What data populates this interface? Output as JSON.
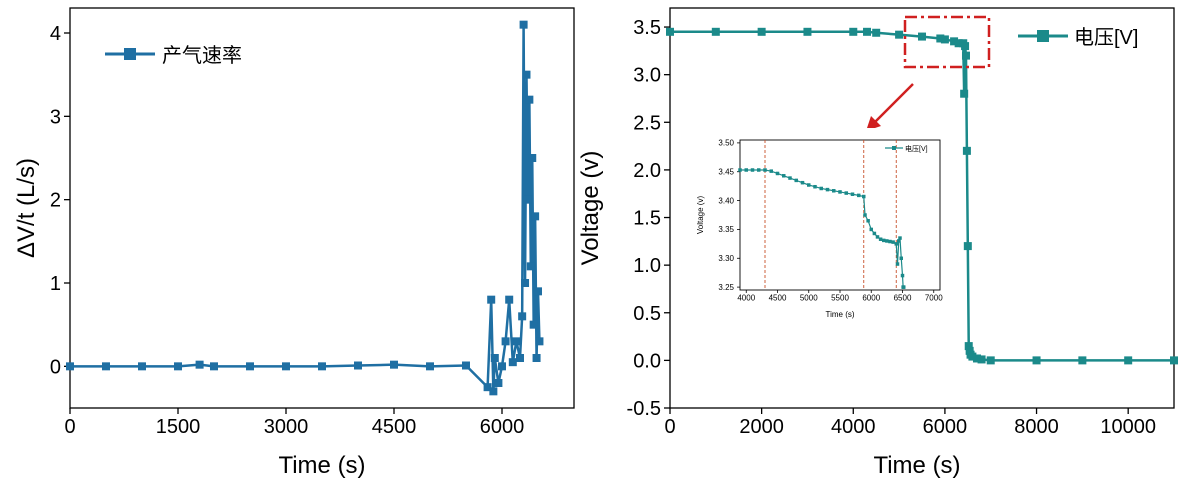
{
  "chart_data": [
    {
      "type": "line",
      "xlabel": "Time (s)",
      "ylabel": "ΔV/t (L/s)",
      "xlim": [
        0,
        7000
      ],
      "ylim": [
        -0.5,
        4.3
      ],
      "xticks": [
        "0",
        "1500",
        "3000",
        "4500",
        "6000"
      ],
      "yticks": [
        "0",
        "1",
        "2",
        "3",
        "4"
      ],
      "legend_position": "top-left",
      "grid": false,
      "color": "#1f6fa3",
      "series": [
        {
          "name": "产气速率",
          "x": [
            0,
            500,
            1000,
            1500,
            1800,
            2000,
            2500,
            3000,
            3500,
            4000,
            4500,
            5000,
            5500,
            5800,
            5850,
            5880,
            5900,
            5950,
            6000,
            6050,
            6100,
            6150,
            6200,
            6250,
            6280,
            6300,
            6320,
            6340,
            6360,
            6380,
            6400,
            6420,
            6440,
            6460,
            6480,
            6500,
            6520
          ],
          "y": [
            0.0,
            0.0,
            0.0,
            0.0,
            0.02,
            0.0,
            0.0,
            0.0,
            0.0,
            0.01,
            0.02,
            0.0,
            0.01,
            -0.25,
            0.8,
            -0.3,
            0.1,
            -0.2,
            0.0,
            0.3,
            0.8,
            0.05,
            0.3,
            0.1,
            0.6,
            4.1,
            1.0,
            3.5,
            2.0,
            3.2,
            1.2,
            2.5,
            0.5,
            1.8,
            0.1,
            0.9,
            0.3
          ]
        }
      ]
    },
    {
      "type": "line",
      "xlabel": "Time (s)",
      "ylabel": "Voltage (v)",
      "xlim": [
        0,
        11000
      ],
      "ylim": [
        -0.5,
        3.7
      ],
      "xticks": [
        "0",
        "2000",
        "4000",
        "6000",
        "8000",
        "10000"
      ],
      "yticks": [
        "-0.5",
        "0.0",
        "0.5",
        "1.0",
        "1.5",
        "2.0",
        "2.5",
        "3.0",
        "3.5"
      ],
      "legend_position": "top-right",
      "grid": false,
      "color": "#1b8a8a",
      "series": [
        {
          "name": "电压[V]",
          "x": [
            0,
            1000,
            2000,
            3000,
            4000,
            4300,
            4500,
            5000,
            5500,
            5900,
            6000,
            6200,
            6300,
            6400,
            6420,
            6440,
            6460,
            6480,
            6500,
            6520,
            6540,
            6560,
            6600,
            6700,
            6800,
            7000,
            8000,
            9000,
            10000,
            11000
          ],
          "y": [
            3.45,
            3.45,
            3.45,
            3.45,
            3.45,
            3.45,
            3.44,
            3.42,
            3.4,
            3.38,
            3.37,
            3.35,
            3.33,
            3.33,
            2.8,
            3.3,
            3.2,
            2.2,
            1.2,
            0.15,
            0.1,
            0.06,
            0.04,
            0.02,
            0.01,
            0.0,
            0.0,
            0.0,
            0.0,
            0.0
          ]
        }
      ]
    },
    {
      "type": "line",
      "xlabel": "Time (s)",
      "ylabel": "Voltage (v)",
      "xlim": [
        3900,
        7100
      ],
      "ylim": [
        3.245,
        3.505
      ],
      "xticks": [
        "4000",
        "4500",
        "5000",
        "5500",
        "6000",
        "6500",
        "7000"
      ],
      "yticks": [
        "3.25",
        "3.30",
        "3.35",
        "3.40",
        "3.45",
        "3.50"
      ],
      "legend_position": "top-right",
      "color": "#1b8a8a",
      "reference_lines_x": [
        4300,
        5880,
        6400
      ],
      "series": [
        {
          "name": "电压[V]",
          "x": [
            3900,
            4000,
            4100,
            4200,
            4300,
            4400,
            4500,
            4600,
            4700,
            4800,
            4900,
            5000,
            5100,
            5200,
            5300,
            5400,
            5500,
            5600,
            5700,
            5800,
            5880,
            5900,
            5950,
            6000,
            6050,
            6100,
            6150,
            6200,
            6250,
            6300,
            6350,
            6400,
            6420,
            6440,
            6460,
            6480,
            6500,
            6510,
            6520
          ],
          "y": [
            3.453,
            3.453,
            3.453,
            3.453,
            3.453,
            3.451,
            3.447,
            3.443,
            3.439,
            3.435,
            3.431,
            3.427,
            3.424,
            3.421,
            3.419,
            3.417,
            3.415,
            3.413,
            3.411,
            3.409,
            3.407,
            3.375,
            3.365,
            3.35,
            3.343,
            3.337,
            3.333,
            3.331,
            3.33,
            3.329,
            3.328,
            3.325,
            3.29,
            3.33,
            3.335,
            3.3,
            3.27,
            3.25,
            3.25
          ]
        }
      ]
    }
  ],
  "colors": {
    "zoom_box": "#d02020",
    "reference_line": "#c8502a",
    "arrow": "#d02020"
  }
}
